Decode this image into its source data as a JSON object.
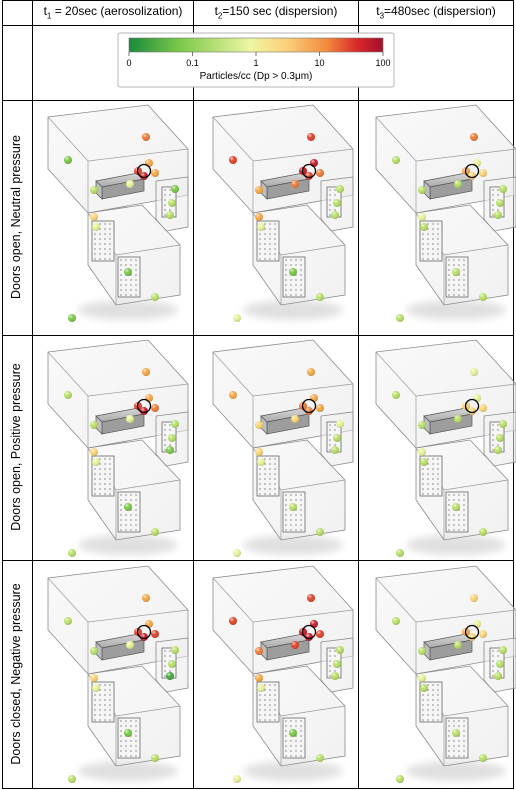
{
  "headers": [
    {
      "prefix": "t",
      "sub": "1",
      "suffix": " = 20sec (aerosolization)"
    },
    {
      "prefix": "t",
      "sub": "2",
      "suffix": "=150 sec (dispersion)"
    },
    {
      "prefix": "t",
      "sub": "3",
      "suffix": "=480sec (dispersion)"
    }
  ],
  "colorbar": {
    "ticks": [
      "0",
      "0.1",
      "1",
      "10",
      "100"
    ],
    "label": "Particles/cc (Dp > 0.3μm)",
    "colors": [
      "#1a8a3a",
      "#7cc84a",
      "#e9f4a0",
      "#fbd07a",
      "#f28a3e",
      "#d8272b",
      "#a3102b"
    ]
  },
  "rows": [
    {
      "label": "Doors open, Neutral pressure",
      "panels": [
        {
          "levels": [
            2,
            7,
            6,
            8,
            9,
            6,
            4,
            3,
            2,
            3,
            3,
            5,
            4,
            2,
            3,
            2
          ]
        },
        {
          "levels": [
            8,
            8,
            9,
            9,
            8,
            7,
            7,
            6,
            3,
            3,
            3,
            6,
            4,
            2,
            3,
            4
          ]
        },
        {
          "levels": [
            3,
            7,
            4,
            6,
            5,
            5,
            3,
            3,
            3,
            3,
            3,
            4,
            3,
            3,
            3,
            3
          ]
        }
      ]
    },
    {
      "label": "Doors open, Positive pressure",
      "panels": [
        {
          "levels": [
            3,
            6,
            6,
            8,
            9,
            7,
            4,
            3,
            3,
            3,
            2,
            5,
            4,
            2,
            3,
            3
          ]
        },
        {
          "levels": [
            6,
            6,
            6,
            7,
            7,
            6,
            5,
            5,
            4,
            3,
            3,
            5,
            4,
            3,
            3,
            4
          ]
        },
        {
          "levels": [
            3,
            4,
            4,
            5,
            5,
            5,
            3,
            3,
            3,
            3,
            3,
            4,
            3,
            3,
            3,
            3
          ]
        }
      ]
    },
    {
      "label": "Doors closed, Negative pressure",
      "panels": [
        {
          "levels": [
            3,
            6,
            6,
            8,
            9,
            8,
            4,
            3,
            3,
            3,
            1,
            5,
            4,
            2,
            3,
            3
          ]
        },
        {
          "levels": [
            8,
            8,
            9,
            9,
            9,
            8,
            8,
            7,
            3,
            3,
            3,
            6,
            4,
            2,
            3,
            4
          ]
        },
        {
          "levels": [
            3,
            5,
            4,
            6,
            5,
            5,
            3,
            3,
            3,
            3,
            3,
            4,
            3,
            3,
            3,
            3
          ]
        }
      ]
    }
  ]
}
